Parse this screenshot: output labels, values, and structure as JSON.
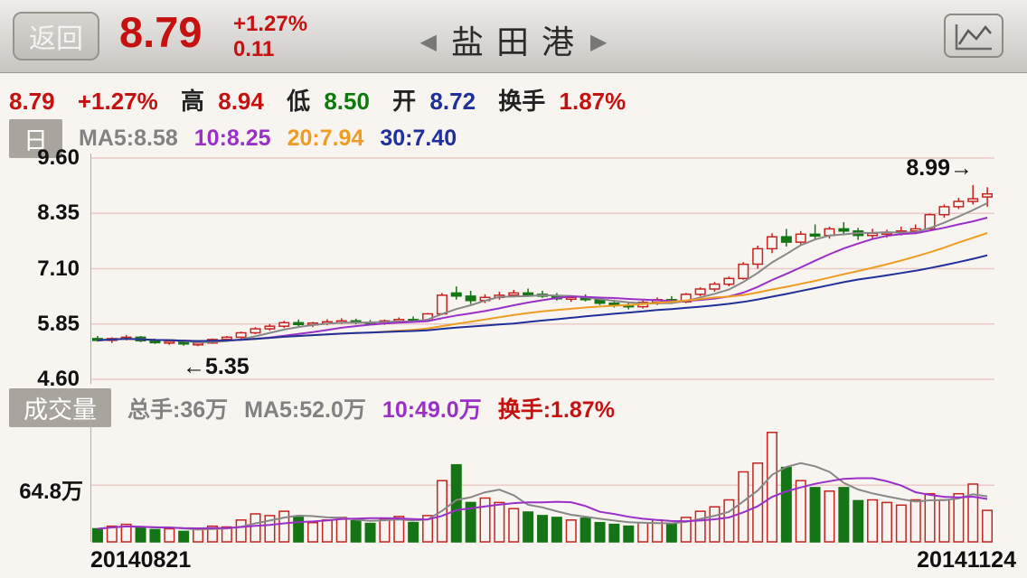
{
  "header": {
    "back_label": "返回",
    "price": "8.79",
    "change_pct": "+1.27%",
    "change_abs": "0.11",
    "prev_icon": "◀",
    "title": "盐 田 港",
    "next_icon": "▶"
  },
  "quote_bar": {
    "price": "8.79",
    "change_pct": "+1.27%",
    "high_label": "高",
    "high": "8.94",
    "low_label": "低",
    "low": "8.50",
    "open_label": "开",
    "open": "8.72",
    "turnover_label": "换手",
    "turnover": "1.87%"
  },
  "ma_bar": {
    "period_tab": "日",
    "ma5": "MA5:8.58",
    "ma10": "10:8.25",
    "ma20": "20:7.94",
    "ma30": "30:7.40"
  },
  "volume_bar": {
    "tab": "成交量",
    "total": "总手:36万",
    "ma5": "MA5:52.0万",
    "ma10": "10:49.0万",
    "turnover": "换手:1.87%"
  },
  "axis": {
    "price_ticks": [
      "9.60",
      "8.35",
      "7.10",
      "5.85",
      "4.60"
    ],
    "volume_tick": "64.8万",
    "date_start": "20140821",
    "date_end": "20141124"
  },
  "annotations": {
    "high": "8.99→",
    "low": "←5.35"
  },
  "colors": {
    "up": "#c5231f",
    "down": "#157515",
    "ma5": "#888888",
    "ma10": "#9b30c8",
    "ma20": "#ef9d22",
    "ma30": "#20309a",
    "grid": "#ecc9c7",
    "axisline": "#b3afa9",
    "bg": "#f8f5f1"
  },
  "chart_data": {
    "type": "candlestick",
    "symbol_title": "盐田港",
    "period": "日",
    "price_range": [
      4.6,
      9.6
    ],
    "price_axis_ticks": [
      9.6,
      8.35,
      7.1,
      5.85,
      4.6
    ],
    "date_start": "20140821",
    "date_end": "20141124",
    "annotation_high": 8.99,
    "annotation_low": 5.35,
    "ma_legend": {
      "ma5": 8.58,
      "ma10": 8.25,
      "ma20": 7.94,
      "ma30": 7.4
    },
    "volume_legend": {
      "total_wan": 36,
      "ma5_wan": 52.0,
      "ma10_wan": 49.0,
      "turnover_pct": 1.87
    },
    "volume_axis": {
      "max_wan": 130,
      "gridline_wan": 64.8
    },
    "last_day": {
      "open": 8.72,
      "high": 8.94,
      "low": 8.5,
      "close": 8.79,
      "change_pct": 1.27,
      "change_abs": 0.11
    },
    "candles_ohlc": [
      [
        5.52,
        5.58,
        5.45,
        5.48
      ],
      [
        5.48,
        5.55,
        5.42,
        5.52
      ],
      [
        5.52,
        5.6,
        5.48,
        5.55
      ],
      [
        5.55,
        5.58,
        5.44,
        5.47
      ],
      [
        5.47,
        5.52,
        5.4,
        5.43
      ],
      [
        5.43,
        5.5,
        5.38,
        5.46
      ],
      [
        5.46,
        5.49,
        5.36,
        5.4
      ],
      [
        5.4,
        5.45,
        5.35,
        5.42
      ],
      [
        5.42,
        5.52,
        5.4,
        5.5
      ],
      [
        5.5,
        5.58,
        5.46,
        5.55
      ],
      [
        5.55,
        5.68,
        5.52,
        5.65
      ],
      [
        5.65,
        5.78,
        5.62,
        5.74
      ],
      [
        5.74,
        5.85,
        5.7,
        5.8
      ],
      [
        5.8,
        5.92,
        5.76,
        5.88
      ],
      [
        5.88,
        5.95,
        5.8,
        5.84
      ],
      [
        5.84,
        5.9,
        5.78,
        5.87
      ],
      [
        5.87,
        5.96,
        5.82,
        5.9
      ],
      [
        5.9,
        5.98,
        5.85,
        5.92
      ],
      [
        5.92,
        5.97,
        5.84,
        5.88
      ],
      [
        5.88,
        5.94,
        5.82,
        5.86
      ],
      [
        5.86,
        5.95,
        5.83,
        5.92
      ],
      [
        5.92,
        6.0,
        5.88,
        5.95
      ],
      [
        5.95,
        6.02,
        5.9,
        5.93
      ],
      [
        5.93,
        6.1,
        5.9,
        6.08
      ],
      [
        6.08,
        6.55,
        6.05,
        6.5
      ],
      [
        6.55,
        6.7,
        6.4,
        6.48
      ],
      [
        6.48,
        6.6,
        6.3,
        6.38
      ],
      [
        6.38,
        6.52,
        6.32,
        6.45
      ],
      [
        6.45,
        6.58,
        6.4,
        6.5
      ],
      [
        6.5,
        6.62,
        6.45,
        6.55
      ],
      [
        6.55,
        6.65,
        6.48,
        6.52
      ],
      [
        6.52,
        6.6,
        6.44,
        6.48
      ],
      [
        6.48,
        6.55,
        6.38,
        6.42
      ],
      [
        6.42,
        6.5,
        6.35,
        6.45
      ],
      [
        6.45,
        6.52,
        6.36,
        6.4
      ],
      [
        6.4,
        6.46,
        6.28,
        6.32
      ],
      [
        6.32,
        6.4,
        6.22,
        6.28
      ],
      [
        6.28,
        6.35,
        6.18,
        6.24
      ],
      [
        6.24,
        6.38,
        6.2,
        6.34
      ],
      [
        6.34,
        6.45,
        6.28,
        6.4
      ],
      [
        6.4,
        6.48,
        6.3,
        6.35
      ],
      [
        6.35,
        6.55,
        6.32,
        6.52
      ],
      [
        6.52,
        6.68,
        6.48,
        6.64
      ],
      [
        6.64,
        6.8,
        6.58,
        6.75
      ],
      [
        6.75,
        6.92,
        6.7,
        6.88
      ],
      [
        6.88,
        7.25,
        6.85,
        7.2
      ],
      [
        7.2,
        7.62,
        7.1,
        7.55
      ],
      [
        7.55,
        7.9,
        7.45,
        7.82
      ],
      [
        7.82,
        8.0,
        7.6,
        7.7
      ],
      [
        7.7,
        7.95,
        7.62,
        7.88
      ],
      [
        7.88,
        8.1,
        7.75,
        7.85
      ],
      [
        7.85,
        8.05,
        7.78,
        8.0
      ],
      [
        8.0,
        8.15,
        7.88,
        7.95
      ],
      [
        7.95,
        8.02,
        7.75,
        7.85
      ],
      [
        7.85,
        8.0,
        7.78,
        7.9
      ],
      [
        7.9,
        7.98,
        7.8,
        7.92
      ],
      [
        7.92,
        8.05,
        7.85,
        7.95
      ],
      [
        7.95,
        8.1,
        7.88,
        8.0
      ],
      [
        8.0,
        8.35,
        7.98,
        8.32
      ],
      [
        8.32,
        8.55,
        8.25,
        8.5
      ],
      [
        8.5,
        8.7,
        8.45,
        8.62
      ],
      [
        8.62,
        8.99,
        8.55,
        8.68
      ],
      [
        8.72,
        8.94,
        8.5,
        8.79
      ]
    ],
    "volumes_wan": [
      15,
      18,
      20,
      16,
      14,
      15,
      12,
      14,
      18,
      17,
      25,
      32,
      30,
      35,
      28,
      22,
      25,
      28,
      24,
      21,
      26,
      29,
      22,
      30,
      70,
      88,
      45,
      50,
      45,
      38,
      34,
      30,
      28,
      25,
      27,
      22,
      20,
      18,
      22,
      25,
      21,
      28,
      35,
      40,
      48,
      80,
      90,
      125,
      85,
      70,
      62,
      58,
      62,
      47,
      48,
      45,
      42,
      48,
      55,
      48,
      55,
      66,
      36
    ]
  }
}
